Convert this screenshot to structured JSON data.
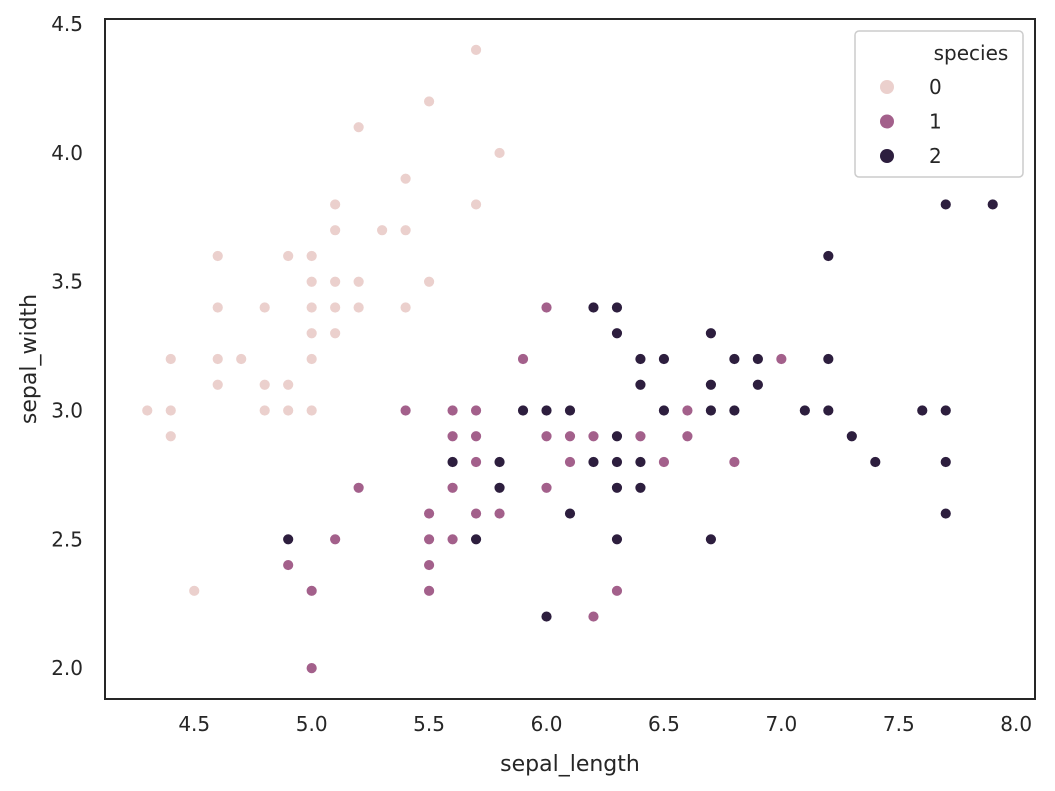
{
  "chart_data": {
    "type": "scatter",
    "title": "",
    "xlabel": "sepal_length",
    "ylabel": "sepal_width",
    "xlim": [
      4.12,
      8.08
    ],
    "ylim": [
      1.88,
      4.52
    ],
    "xticks": [
      "4.5",
      "5.0",
      "5.5",
      "6.0",
      "6.5",
      "7.0",
      "7.5",
      "8.0"
    ],
    "yticks": [
      "2.0",
      "2.5",
      "3.0",
      "3.5",
      "4.0",
      "4.5"
    ],
    "grid": false,
    "legend": {
      "title": "species",
      "placement": "top-right",
      "entries": [
        "0",
        "1",
        "2"
      ]
    },
    "series": [
      {
        "name": "0",
        "color": "#ebd0cd",
        "points": [
          [
            4.3,
            3.0
          ],
          [
            4.4,
            3.2
          ],
          [
            4.4,
            3.0
          ],
          [
            4.4,
            2.9
          ],
          [
            4.5,
            2.3
          ],
          [
            4.6,
            3.6
          ],
          [
            4.6,
            3.4
          ],
          [
            4.6,
            3.2
          ],
          [
            4.6,
            3.1
          ],
          [
            4.7,
            3.2
          ],
          [
            4.8,
            3.4
          ],
          [
            4.8,
            3.1
          ],
          [
            4.8,
            3.0
          ],
          [
            4.9,
            3.6
          ],
          [
            4.9,
            3.1
          ],
          [
            4.9,
            3.0
          ],
          [
            5.0,
            3.6
          ],
          [
            5.0,
            3.5
          ],
          [
            5.0,
            3.4
          ],
          [
            5.0,
            3.3
          ],
          [
            5.0,
            3.2
          ],
          [
            5.0,
            3.0
          ],
          [
            5.1,
            3.8
          ],
          [
            5.1,
            3.7
          ],
          [
            5.1,
            3.5
          ],
          [
            5.1,
            3.4
          ],
          [
            5.1,
            3.3
          ],
          [
            5.2,
            4.1
          ],
          [
            5.2,
            3.5
          ],
          [
            5.2,
            3.4
          ],
          [
            5.3,
            3.7
          ],
          [
            5.4,
            3.9
          ],
          [
            5.4,
            3.7
          ],
          [
            5.4,
            3.4
          ],
          [
            5.5,
            4.2
          ],
          [
            5.5,
            3.5
          ],
          [
            5.7,
            4.4
          ],
          [
            5.7,
            3.8
          ],
          [
            5.8,
            4.0
          ]
        ]
      },
      {
        "name": "1",
        "color": "#a3608b",
        "points": [
          [
            4.9,
            2.4
          ],
          [
            5.0,
            2.3
          ],
          [
            5.0,
            2.0
          ],
          [
            5.1,
            2.5
          ],
          [
            5.2,
            2.7
          ],
          [
            5.4,
            3.0
          ],
          [
            5.5,
            2.6
          ],
          [
            5.5,
            2.5
          ],
          [
            5.5,
            2.4
          ],
          [
            5.5,
            2.3
          ],
          [
            5.6,
            3.0
          ],
          [
            5.6,
            2.9
          ],
          [
            5.6,
            2.7
          ],
          [
            5.6,
            2.5
          ],
          [
            5.7,
            3.0
          ],
          [
            5.7,
            2.9
          ],
          [
            5.7,
            2.8
          ],
          [
            5.7,
            2.6
          ],
          [
            5.8,
            2.6
          ],
          [
            5.9,
            3.2
          ],
          [
            6.0,
            3.4
          ],
          [
            6.0,
            2.9
          ],
          [
            6.0,
            2.7
          ],
          [
            6.1,
            2.9
          ],
          [
            6.1,
            2.8
          ],
          [
            6.2,
            2.9
          ],
          [
            6.2,
            2.2
          ],
          [
            6.3,
            2.3
          ],
          [
            6.4,
            2.9
          ],
          [
            6.5,
            2.8
          ],
          [
            6.6,
            3.0
          ],
          [
            6.6,
            2.9
          ],
          [
            6.8,
            2.8
          ],
          [
            7.0,
            3.2
          ]
        ]
      },
      {
        "name": "2",
        "color": "#2d1e3e",
        "points": [
          [
            4.9,
            2.5
          ],
          [
            5.6,
            2.8
          ],
          [
            5.7,
            2.5
          ],
          [
            5.8,
            2.8
          ],
          [
            5.8,
            2.7
          ],
          [
            5.9,
            3.0
          ],
          [
            6.0,
            3.0
          ],
          [
            6.0,
            2.2
          ],
          [
            6.1,
            3.0
          ],
          [
            6.1,
            2.6
          ],
          [
            6.2,
            3.4
          ],
          [
            6.2,
            2.8
          ],
          [
            6.3,
            3.4
          ],
          [
            6.3,
            3.3
          ],
          [
            6.3,
            2.9
          ],
          [
            6.3,
            2.8
          ],
          [
            6.3,
            2.7
          ],
          [
            6.3,
            2.5
          ],
          [
            6.4,
            3.2
          ],
          [
            6.4,
            3.1
          ],
          [
            6.4,
            2.8
          ],
          [
            6.4,
            2.7
          ],
          [
            6.5,
            3.2
          ],
          [
            6.5,
            3.0
          ],
          [
            6.7,
            3.3
          ],
          [
            6.7,
            3.1
          ],
          [
            6.7,
            3.0
          ],
          [
            6.7,
            2.5
          ],
          [
            6.8,
            3.2
          ],
          [
            6.8,
            3.0
          ],
          [
            6.9,
            3.2
          ],
          [
            6.9,
            3.1
          ],
          [
            7.1,
            3.0
          ],
          [
            7.2,
            3.6
          ],
          [
            7.2,
            3.2
          ],
          [
            7.2,
            3.0
          ],
          [
            7.3,
            2.9
          ],
          [
            7.4,
            2.8
          ],
          [
            7.6,
            3.0
          ],
          [
            7.7,
            3.8
          ],
          [
            7.7,
            3.0
          ],
          [
            7.7,
            2.8
          ],
          [
            7.7,
            2.6
          ],
          [
            7.9,
            3.8
          ]
        ]
      }
    ]
  }
}
